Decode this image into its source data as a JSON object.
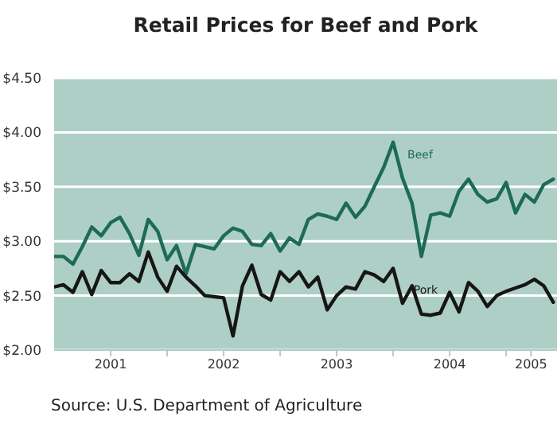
{
  "chart_data": {
    "type": "line",
    "title": "Retail Prices for Beef and Pork",
    "annotations": [
      "Source: U.S. Department of Agriculture"
    ],
    "x": [
      2001,
      2001.083,
      2001.167,
      2001.25,
      2001.333,
      2001.417,
      2001.5,
      2001.583,
      2001.667,
      2001.75,
      2001.833,
      2001.917,
      2002,
      2002.083,
      2002.167,
      2002.25,
      2002.333,
      2002.417,
      2002.5,
      2002.583,
      2002.667,
      2002.75,
      2002.833,
      2002.917,
      2003,
      2003.083,
      2003.167,
      2003.25,
      2003.333,
      2003.417,
      2003.5,
      2003.583,
      2003.667,
      2003.75,
      2003.833,
      2003.917,
      2004,
      2004.083,
      2004.167,
      2004.25,
      2004.333,
      2004.417,
      2004.5,
      2004.583,
      2004.667,
      2004.75,
      2004.833,
      2004.917,
      2005,
      2005.083,
      2005.167,
      2005.25,
      2005.333,
      2005.417
    ],
    "series": [
      {
        "name": "Beef",
        "color": "#1d6b55",
        "values": [
          2.86,
          2.86,
          2.79,
          2.95,
          3.13,
          3.05,
          3.17,
          3.22,
          3.07,
          2.87,
          3.2,
          3.09,
          2.83,
          2.96,
          2.7,
          2.97,
          2.95,
          2.93,
          3.05,
          3.12,
          3.09,
          2.97,
          2.96,
          3.07,
          2.91,
          3.03,
          2.97,
          3.2,
          3.25,
          3.23,
          3.2,
          3.35,
          3.22,
          3.32,
          3.5,
          3.68,
          3.91,
          3.58,
          3.35,
          2.86,
          3.24,
          3.26,
          3.23,
          3.46,
          3.57,
          3.43,
          3.36,
          3.39,
          3.54,
          3.26,
          3.43,
          3.36,
          3.52,
          3.57
        ]
      },
      {
        "name": "Pork",
        "color": "#161616",
        "values": [
          2.58,
          2.6,
          2.53,
          2.72,
          2.51,
          2.73,
          2.62,
          2.62,
          2.7,
          2.63,
          2.9,
          2.67,
          2.54,
          2.77,
          2.67,
          2.59,
          2.5,
          2.49,
          2.48,
          2.13,
          2.59,
          2.78,
          2.51,
          2.46,
          2.72,
          2.63,
          2.72,
          2.58,
          2.67,
          2.37,
          2.5,
          2.58,
          2.56,
          2.72,
          2.69,
          2.63,
          2.75,
          2.43,
          2.59,
          2.33,
          2.32,
          2.34,
          2.53,
          2.35,
          2.62,
          2.54,
          2.4,
          2.5,
          2.54,
          2.57,
          2.6,
          2.65,
          2.59,
          2.44
        ]
      }
    ],
    "xlim": [
      2001,
      2005.45
    ],
    "xticks": [
      {
        "value": 2001.5,
        "label": "2001"
      },
      {
        "value": 2002,
        "label": null
      },
      {
        "value": 2002.5,
        "label": "2002"
      },
      {
        "value": 2003,
        "label": null
      },
      {
        "value": 2003.5,
        "label": "2003"
      },
      {
        "value": 2004,
        "label": null
      },
      {
        "value": 2004.5,
        "label": "2004"
      },
      {
        "value": 2005,
        "label": null
      },
      {
        "value": 2005.22,
        "label": "2005"
      }
    ],
    "ylim": [
      2,
      4.5
    ],
    "yticks": [
      {
        "value": 2,
        "label": "$2.00"
      },
      {
        "value": 2.5,
        "label": "$2.50"
      },
      {
        "value": 3,
        "label": "$3.00"
      },
      {
        "value": 3.5,
        "label": "$3.50"
      },
      {
        "value": 4,
        "label": "$4.00"
      },
      {
        "value": 4.5,
        "label": "$4.50"
      }
    ],
    "grid": "y",
    "legend": false,
    "marker": "none",
    "line_style": "solid"
  }
}
